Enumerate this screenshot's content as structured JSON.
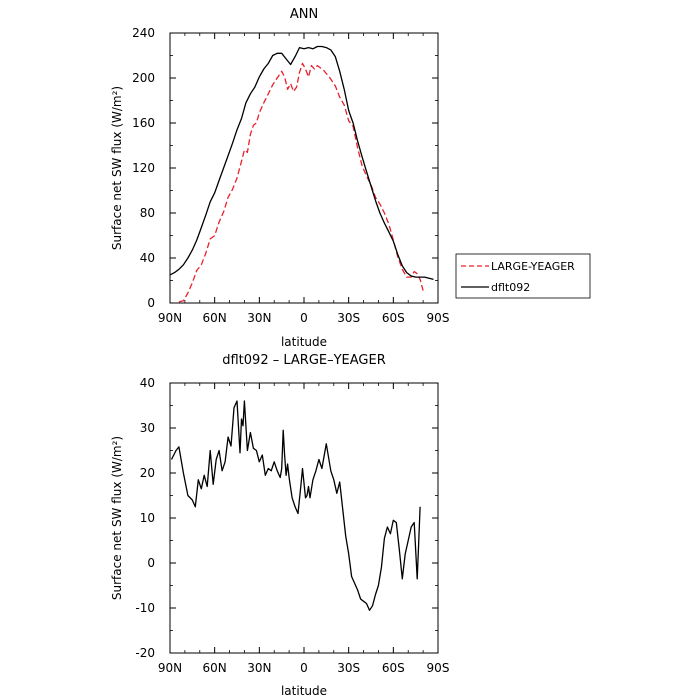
{
  "chart_data": [
    {
      "type": "line",
      "title": "ANN",
      "xlabel": "latitude",
      "ylabel": "Surface net SW flux (W/m²)",
      "xlim": [
        90,
        -90
      ],
      "ylim": [
        0,
        240
      ],
      "x_ticks": [
        90,
        60,
        30,
        0,
        -30,
        -60,
        -90
      ],
      "x_tick_labels": [
        "90N",
        "60N",
        "30N",
        "0",
        "30S",
        "60S",
        "90S"
      ],
      "y_ticks": [
        0,
        40,
        80,
        120,
        160,
        200,
        240
      ],
      "y_tick_labels": [
        "0",
        "40",
        "80",
        "120",
        "160",
        "200",
        "240"
      ],
      "grid": false,
      "legend_position": "right",
      "series": [
        {
          "name": "LARGE-YEAGER",
          "color": "#e8212b",
          "dash": "dashed",
          "x": [
            84,
            81,
            78,
            75,
            72,
            69,
            66,
            63,
            60,
            57,
            54,
            51,
            48,
            45,
            42,
            40,
            38,
            36,
            34,
            32,
            30,
            27,
            24,
            21,
            18,
            15,
            13,
            11,
            9,
            7,
            5,
            3,
            1,
            -1,
            -3,
            -5,
            -7,
            -9,
            -11,
            -13,
            -15,
            -17,
            -19,
            -21,
            -24,
            -27,
            -30,
            -33,
            -36,
            -39,
            -42,
            -45,
            -48,
            -51,
            -54,
            -57,
            -60,
            -63,
            -66,
            -69,
            -72,
            -74,
            -76,
            -78,
            -80
          ],
          "values": [
            1,
            2,
            9,
            18,
            29,
            34,
            44,
            57,
            60,
            72,
            81,
            94,
            101,
            111,
            126,
            136,
            134,
            150,
            158,
            160,
            169,
            178,
            186,
            194,
            200,
            206,
            201,
            190,
            195,
            188,
            192,
            205,
            213,
            208,
            201,
            211,
            208,
            211,
            209,
            207,
            204,
            201,
            197,
            193,
            183,
            176,
            162,
            157,
            138,
            122,
            113,
            105,
            94,
            88,
            80,
            70,
            56,
            41,
            30,
            23,
            23,
            28,
            26,
            21,
            11
          ]
        },
        {
          "name": "dflt092",
          "color": "#000000",
          "dash": "solid",
          "x": [
            90,
            87,
            84,
            81,
            78,
            75,
            72,
            69,
            66,
            63,
            60,
            57,
            54,
            51,
            48,
            45,
            42,
            39,
            36,
            33,
            30,
            27,
            24,
            21,
            18,
            15,
            12,
            9,
            6,
            3,
            0,
            -3,
            -6,
            -9,
            -12,
            -15,
            -18,
            -21,
            -24,
            -27,
            -30,
            -33,
            -36,
            -39,
            -42,
            -45,
            -48,
            -51,
            -54,
            -57,
            -60,
            -63,
            -66,
            -69,
            -72,
            -75,
            -78,
            -81,
            -84,
            -87
          ],
          "values": [
            25,
            27,
            30,
            34,
            40,
            47,
            56,
            67,
            78,
            90,
            98,
            109,
            120,
            131,
            142,
            154,
            164,
            178,
            186,
            192,
            201,
            208,
            213,
            220,
            222,
            222,
            217,
            212,
            219,
            227,
            226,
            227,
            226,
            228,
            228,
            227,
            225,
            219,
            206,
            190,
            171,
            160,
            144,
            130,
            117,
            104,
            91,
            80,
            71,
            63,
            55,
            43,
            33,
            27,
            24,
            23,
            23,
            23,
            22,
            21
          ]
        }
      ]
    },
    {
      "type": "line",
      "title": "dflt092 – LARGE–YEAGER",
      "xlabel": "latitude",
      "ylabel": "Surface net SW flux (W/m²)",
      "xlim": [
        90,
        -90
      ],
      "ylim": [
        -20,
        40
      ],
      "x_ticks": [
        90,
        60,
        30,
        0,
        -30,
        -60,
        -90
      ],
      "x_tick_labels": [
        "90N",
        "60N",
        "30N",
        "0",
        "30S",
        "60S",
        "90S"
      ],
      "y_ticks": [
        -20,
        -10,
        0,
        10,
        20,
        30,
        40
      ],
      "y_tick_labels": [
        "-20",
        "-10",
        "0",
        "10",
        "20",
        "30",
        "40"
      ],
      "grid": false,
      "series": [
        {
          "color": "#000000",
          "dash": "solid",
          "x": [
            89,
            86,
            84,
            81,
            78,
            75,
            73,
            71,
            69,
            67,
            65,
            63,
            61,
            59,
            57,
            55,
            53,
            51,
            49,
            47,
            45,
            43,
            42,
            41,
            40,
            39,
            38,
            36,
            34,
            32,
            30,
            28,
            26,
            24,
            22,
            20,
            18,
            16,
            15,
            14,
            13,
            12,
            11,
            10,
            8,
            6,
            4,
            2,
            1,
            -1,
            -2,
            -3,
            -4,
            -6,
            -8,
            -10,
            -12,
            -15,
            -18,
            -20,
            -22,
            -24,
            -26,
            -28,
            -30,
            -32,
            -34,
            -36,
            -38,
            -40,
            -42,
            -44,
            -46,
            -48,
            -50,
            -52,
            -54,
            -56,
            -58,
            -60,
            -62,
            -64,
            -66,
            -68,
            -70,
            -72,
            -74,
            -76,
            -77,
            -78
          ],
          "values": [
            23,
            25,
            25.8,
            20,
            15,
            14,
            12.5,
            18.5,
            16.5,
            19.5,
            17,
            25,
            17.5,
            23,
            25,
            20.5,
            22.5,
            28,
            26,
            34.5,
            36,
            24.5,
            32,
            30.5,
            36,
            30.5,
            25,
            29,
            25.5,
            25,
            22.5,
            24,
            19.5,
            21,
            20.5,
            22.5,
            20.5,
            19,
            21,
            29.5,
            24,
            19.5,
            22,
            19,
            14.5,
            12.5,
            11,
            17.5,
            21,
            14.5,
            15,
            17,
            14.5,
            18.5,
            20.5,
            23,
            21,
            26.5,
            20.5,
            18.5,
            15.5,
            18,
            12,
            6,
            2,
            -3,
            -4.5,
            -6,
            -8,
            -8.5,
            -9,
            -10.5,
            -9.5,
            -7,
            -5,
            -1,
            5.5,
            8,
            6.5,
            9.5,
            9,
            3,
            -3.5,
            2,
            5,
            8,
            9,
            -3.5,
            4,
            12.5
          ]
        }
      ]
    }
  ]
}
